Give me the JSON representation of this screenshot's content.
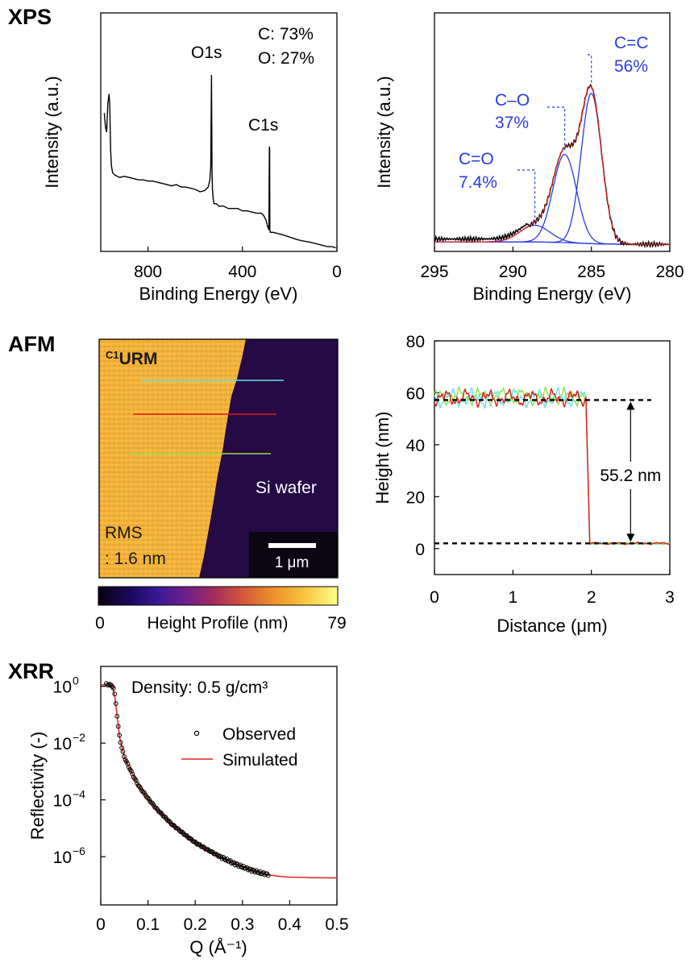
{
  "panels": {
    "xps": "XPS",
    "afm": "AFM",
    "xrr": "XRR"
  },
  "colors": {
    "fit_blue": "#2b3be0",
    "fit_red": "#e0241b",
    "afm_cyan": "#5fe6ee",
    "afm_red": "#d81a10",
    "afm_green": "#8ee34a"
  },
  "chart_data": [
    {
      "id": "xps_survey",
      "type": "line",
      "xlabel": "Binding Energy (eV)",
      "ylabel": "Intensity (a.u.)",
      "xlim": [
        1000,
        0
      ],
      "ylim": [
        0,
        1
      ],
      "xticks": [
        "800",
        "400",
        "0"
      ],
      "xtick_values": [
        800,
        400,
        0
      ],
      "annotations": {
        "composition_c": "C: 73%",
        "composition_o": "O: 27%",
        "peak_o1s": "O1s",
        "peak_c1s": "C1s"
      },
      "peaks": [
        {
          "label": "O1s",
          "x": 531,
          "y": 0.74
        },
        {
          "label": "C1s",
          "x": 284.8,
          "y": 0.44
        }
      ],
      "x": [
        985,
        980,
        975,
        970,
        965,
        962,
        958,
        955,
        950,
        940,
        920,
        900,
        880,
        860,
        840,
        820,
        800,
        780,
        760,
        740,
        720,
        700,
        680,
        660,
        640,
        620,
        600,
        580,
        560,
        545,
        538,
        534,
        531,
        529,
        527,
        524,
        520,
        510,
        500,
        480,
        460,
        440,
        420,
        400,
        380,
        360,
        340,
        320,
        310,
        300,
        292,
        288,
        286,
        285,
        284,
        282,
        280,
        270,
        250,
        230,
        200,
        170,
        150,
        120,
        100,
        80,
        60,
        40,
        20,
        5
      ],
      "y": [
        0.58,
        0.52,
        0.5,
        0.62,
        0.66,
        0.62,
        0.42,
        0.36,
        0.33,
        0.32,
        0.31,
        0.315,
        0.31,
        0.305,
        0.3,
        0.3,
        0.295,
        0.295,
        0.29,
        0.285,
        0.28,
        0.275,
        0.28,
        0.27,
        0.27,
        0.265,
        0.26,
        0.25,
        0.255,
        0.27,
        0.3,
        0.36,
        0.74,
        0.34,
        0.26,
        0.22,
        0.2,
        0.2,
        0.19,
        0.19,
        0.18,
        0.18,
        0.18,
        0.17,
        0.17,
        0.165,
        0.16,
        0.16,
        0.15,
        0.13,
        0.1,
        0.09,
        0.44,
        0.43,
        0.09,
        0.08,
        0.08,
        0.08,
        0.075,
        0.07,
        0.06,
        0.05,
        0.045,
        0.04,
        0.035,
        0.03,
        0.025,
        0.02,
        0.02,
        0.015
      ]
    },
    {
      "id": "xps_c1s",
      "type": "line",
      "xlabel": "Binding Energy (eV)",
      "ylabel": "Intensity (a.u.)",
      "xlim": [
        295,
        280
      ],
      "ylim": [
        0,
        1
      ],
      "xticks": [
        "295",
        "290",
        "285",
        "280"
      ],
      "xtick_values": [
        295,
        290,
        285,
        280
      ],
      "components": [
        {
          "name": "C=C",
          "percent": "56%",
          "center": 285.0,
          "amplitude": 0.63,
          "sigma": 0.65
        },
        {
          "name": "C–O",
          "percent": "37%",
          "center": 286.7,
          "amplitude": 0.37,
          "sigma": 0.75
        },
        {
          "name": "C=O",
          "percent": "7.4%",
          "center": 288.6,
          "amplitude": 0.07,
          "sigma": 0.95
        }
      ],
      "baseline": {
        "left": 0.02,
        "right": 0.1,
        "low": 0.01
      }
    },
    {
      "id": "afm_profile",
      "type": "line",
      "xlabel": "Distance (μm)",
      "ylabel": "Height (nm)",
      "xlim": [
        0,
        3
      ],
      "ylim": [
        -10,
        80
      ],
      "xticks": [
        "0",
        "1",
        "2",
        "3"
      ],
      "xtick_values": [
        0,
        1,
        2,
        3
      ],
      "yticks": [
        "80",
        "60",
        "40",
        "20",
        "0"
      ],
      "ytick_values": [
        80,
        60,
        40,
        20,
        0
      ],
      "step_label": "55.2 nm",
      "upper_level": 57.2,
      "lower_level": 2.0,
      "step_position": 1.95,
      "arrow_x": 2.5,
      "series": [
        {
          "color": "#5fe6ee",
          "mean": 58,
          "amp": 3.6,
          "seed": 3
        },
        {
          "color": "#8ee34a",
          "mean": 58.5,
          "amp": 3.4,
          "seed": 7
        },
        {
          "color": "#d81a10",
          "mean": 58,
          "amp": 3.2,
          "seed": 11
        }
      ]
    },
    {
      "id": "xrr",
      "type": "scatter",
      "xlabel": "Q (Å⁻¹)",
      "ylabel": "Reflectivity (-)",
      "xlim": [
        0,
        0.5
      ],
      "ylim_log10": [
        -7.7,
        0.7
      ],
      "xticks": [
        "0",
        "0.1",
        "0.2",
        "0.3",
        "0.4",
        "0.5"
      ],
      "xtick_values": [
        0,
        0.1,
        0.2,
        0.3,
        0.4,
        0.5
      ],
      "ytick_exponents": [
        0,
        -2,
        -4,
        -6
      ],
      "ytick_base": "10",
      "ytick_exps": [
        "0",
        "−2",
        "−4",
        "−6"
      ],
      "density_label": "Density: 0.5 g/cm³",
      "legend": {
        "observed": "Observed",
        "simulated": "Simulated"
      },
      "legend_placement": "top-right",
      "observed": {
        "q": [
          0.012,
          0.016,
          0.02,
          0.024,
          0.028,
          0.032,
          0.036,
          0.04,
          0.045,
          0.05,
          0.06,
          0.07,
          0.08,
          0.1,
          0.12,
          0.15,
          0.18,
          0.2,
          0.22,
          0.25,
          0.28,
          0.3,
          0.32,
          0.34,
          0.355
        ],
        "log10R": [
          0.08,
          0.05,
          0.05,
          0.02,
          -0.1,
          -0.6,
          -1.3,
          -1.8,
          -2.2,
          -2.5,
          -2.85,
          -3.2,
          -3.5,
          -3.95,
          -4.35,
          -4.85,
          -5.25,
          -5.5,
          -5.7,
          -5.98,
          -6.22,
          -6.36,
          -6.48,
          -6.58,
          -6.63
        ]
      },
      "simulated": {
        "q": [
          0.0,
          0.012,
          0.02,
          0.025,
          0.03,
          0.035,
          0.04,
          0.05,
          0.06,
          0.08,
          0.1,
          0.12,
          0.15,
          0.2,
          0.25,
          0.3,
          0.35,
          0.38,
          0.4,
          0.45,
          0.5
        ],
        "log10R": [
          0.05,
          0.05,
          0.04,
          0.0,
          -0.4,
          -1.1,
          -1.8,
          -2.5,
          -2.85,
          -3.5,
          -3.95,
          -4.35,
          -4.85,
          -5.5,
          -5.98,
          -6.36,
          -6.63,
          -6.7,
          -6.72,
          -6.74,
          -6.75
        ]
      }
    }
  ],
  "afm_image": {
    "sample_label": "C1URM",
    "sample_label_sup": "C1",
    "sample_label_main": "URM",
    "substrate_label": "Si wafer",
    "rms_line1": "RMS",
    "rms_line2": ": 1.6 nm",
    "scale_bar": "1 μm",
    "colorbar_min": "0",
    "colorbar_max": "79",
    "colorbar_label": "Height Profile (nm)"
  }
}
